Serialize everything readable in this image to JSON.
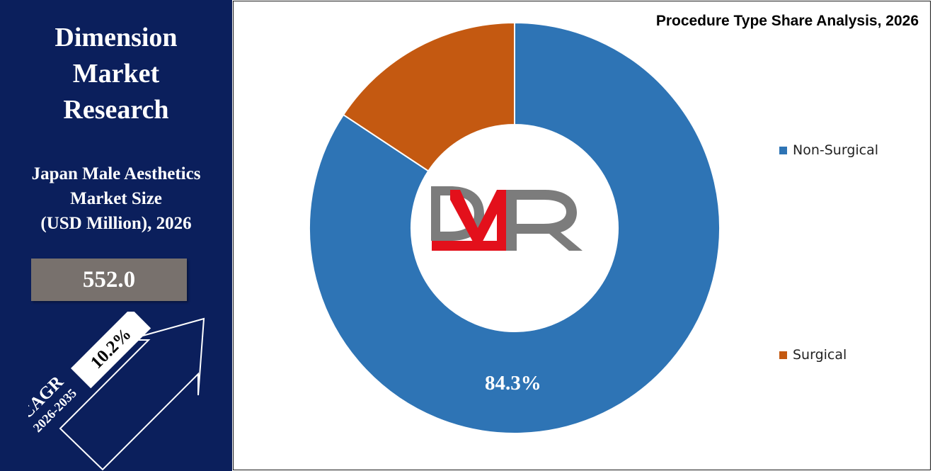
{
  "brand": {
    "name": "Dimension\nMarket\nResearch"
  },
  "market": {
    "title": "Japan Male Aesthetics\nMarket Size\n(USD Million), 2026",
    "value": "552.0"
  },
  "cagr": {
    "label": "CAGR",
    "period": "2026-2035",
    "value": "10.2%"
  },
  "logo": {
    "text": "DMR",
    "colors": {
      "D": "#7c7c7c",
      "M": "#e3101b",
      "R": "#7c7c7c"
    }
  },
  "colors": {
    "left_panel": "#0b1f5c",
    "value_box": "#78716d",
    "non_surgical": "#2e74b5",
    "surgical": "#c45911"
  },
  "chart_data": {
    "type": "pie",
    "title": "Procedure Type Share Analysis, 2026",
    "donut": true,
    "legend_position": "right",
    "slices": [
      {
        "name": "Non-Surgical",
        "value": 84.3,
        "label": "84.3%",
        "color": "#2e74b5"
      },
      {
        "name": "Surgical",
        "value": 15.7,
        "label": "",
        "color": "#c45911"
      }
    ]
  }
}
